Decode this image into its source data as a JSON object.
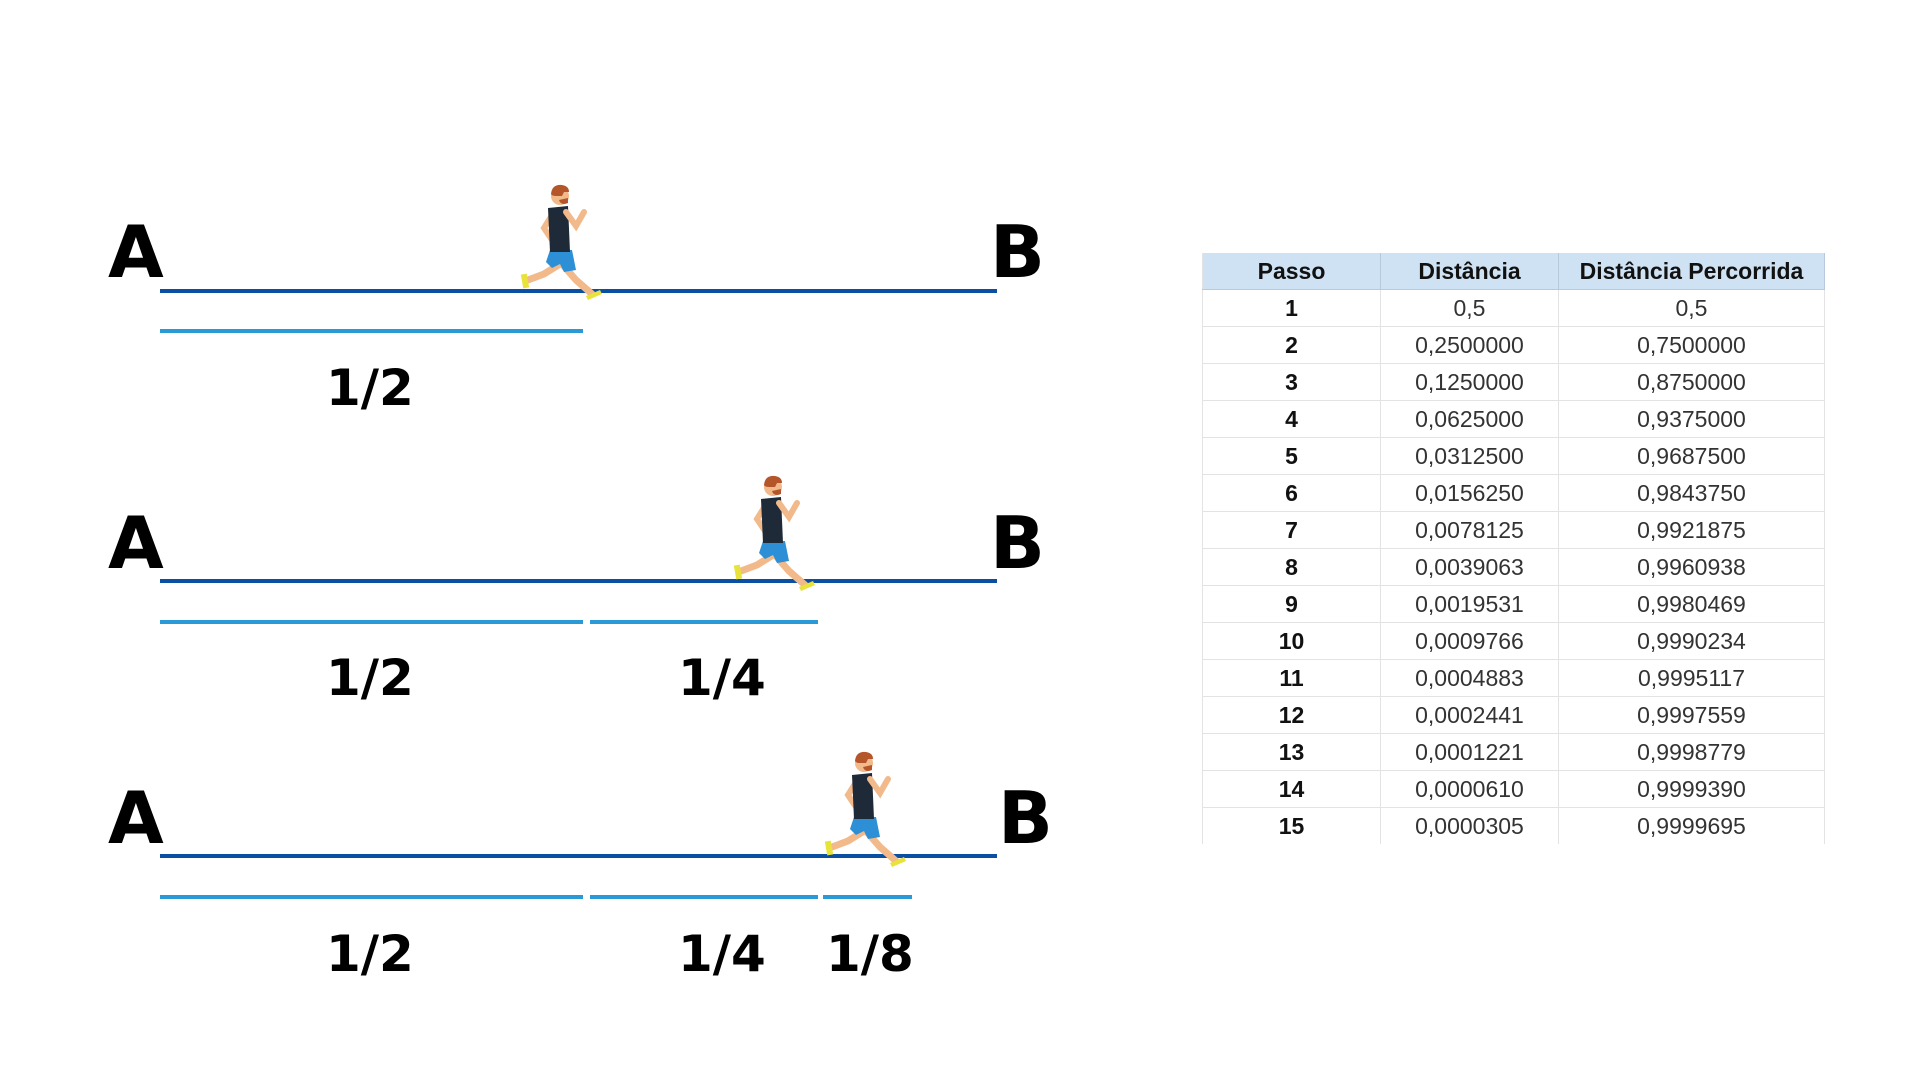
{
  "diagram": {
    "rows": [
      {
        "start_label": "A",
        "end_label": "B",
        "runner_icon": "runner-icon",
        "fractions": [
          "1/2"
        ]
      },
      {
        "start_label": "A",
        "end_label": "B",
        "runner_icon": "runner-icon",
        "fractions": [
          "1/2",
          "1/4"
        ]
      },
      {
        "start_label": "A",
        "end_label": "B",
        "runner_icon": "runner-icon",
        "fractions": [
          "1/2",
          "1/4",
          "1/8"
        ]
      }
    ],
    "colors": {
      "main_line": "#0b4fa3",
      "segment_line": "#2a9ad6",
      "runner_shirt": "#1e2a38",
      "runner_shorts": "#2d8fd6",
      "runner_skin": "#f2b98a",
      "runner_hair": "#b4562a",
      "runner_shoes": "#e8e23a"
    }
  },
  "table": {
    "headers": [
      "Passo",
      "Distância",
      "Distância Percorrida"
    ],
    "rows": [
      [
        "1",
        "0,5",
        "0,5"
      ],
      [
        "2",
        "0,2500000",
        "0,7500000"
      ],
      [
        "3",
        "0,1250000",
        "0,8750000"
      ],
      [
        "4",
        "0,0625000",
        "0,9375000"
      ],
      [
        "5",
        "0,0312500",
        "0,9687500"
      ],
      [
        "6",
        "0,0156250",
        "0,9843750"
      ],
      [
        "7",
        "0,0078125",
        "0,9921875"
      ],
      [
        "8",
        "0,0039063",
        "0,9960938"
      ],
      [
        "9",
        "0,0019531",
        "0,9980469"
      ],
      [
        "10",
        "0,0009766",
        "0,9990234"
      ],
      [
        "11",
        "0,0004883",
        "0,9995117"
      ],
      [
        "12",
        "0,0002441",
        "0,9997559"
      ],
      [
        "13",
        "0,0001221",
        "0,9998779"
      ],
      [
        "14",
        "0,0000610",
        "0,9999390"
      ],
      [
        "15",
        "0,0000305",
        "0,9999695"
      ]
    ],
    "header_bg": "#cfe2f3"
  }
}
